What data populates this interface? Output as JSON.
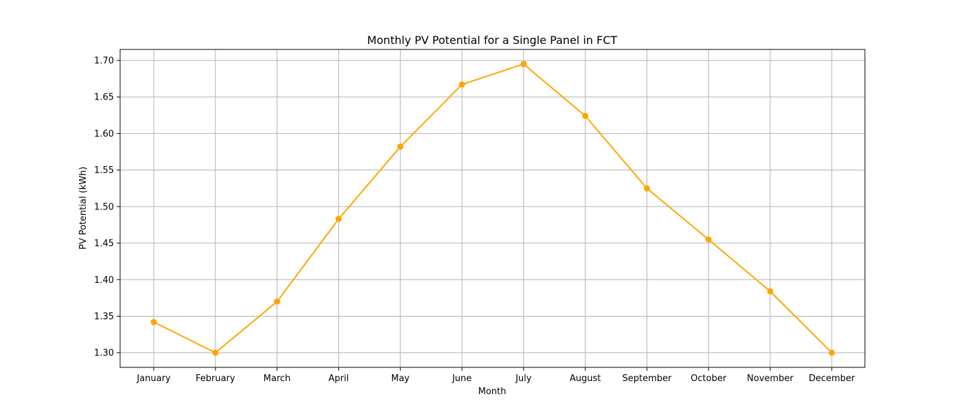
{
  "chart_data": {
    "type": "line",
    "title": "Monthly PV Potential for a Single Panel in FCT",
    "xlabel": "Month",
    "ylabel": "PV Potential (kWh)",
    "categories": [
      "January",
      "February",
      "March",
      "April",
      "May",
      "June",
      "July",
      "August",
      "September",
      "October",
      "November",
      "December"
    ],
    "series": [
      {
        "values": [
          1.342,
          1.3,
          1.37,
          1.483,
          1.582,
          1.667,
          1.695,
          1.624,
          1.525,
          1.455,
          1.384,
          1.3
        ],
        "color": "#ffa500",
        "marker": "circle"
      }
    ],
    "ylim": [
      1.28,
      1.715
    ],
    "yticks": [
      "1.30",
      "1.35",
      "1.40",
      "1.45",
      "1.50",
      "1.55",
      "1.60",
      "1.65",
      "1.70"
    ],
    "grid": true,
    "grid_color": "#b0b0b0",
    "legend": "none"
  }
}
